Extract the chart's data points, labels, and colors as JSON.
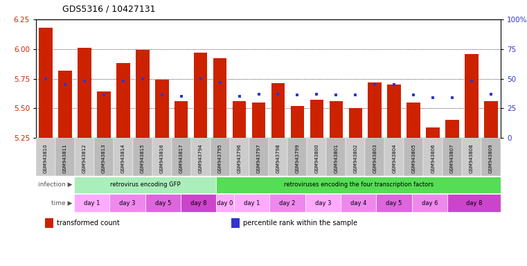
{
  "title": "GDS5316 / 10427131",
  "samples": [
    "GSM943810",
    "GSM943811",
    "GSM943812",
    "GSM943813",
    "GSM943814",
    "GSM943815",
    "GSM943816",
    "GSM943817",
    "GSM943794",
    "GSM943795",
    "GSM943796",
    "GSM943797",
    "GSM943798",
    "GSM943799",
    "GSM943800",
    "GSM943801",
    "GSM943802",
    "GSM943803",
    "GSM943804",
    "GSM943805",
    "GSM943806",
    "GSM943807",
    "GSM943808",
    "GSM943809"
  ],
  "bar_values": [
    6.18,
    5.82,
    6.01,
    5.64,
    5.88,
    5.99,
    5.74,
    5.56,
    5.97,
    5.92,
    5.56,
    5.55,
    5.71,
    5.52,
    5.57,
    5.56,
    5.5,
    5.72,
    5.7,
    5.55,
    5.34,
    5.4,
    5.96,
    5.56
  ],
  "blue_percent": [
    50,
    45,
    48,
    36,
    48,
    50,
    36,
    35,
    50,
    47,
    35,
    37,
    37,
    36,
    37,
    36,
    36,
    45,
    45,
    36,
    34,
    34,
    48,
    37
  ],
  "ylim": [
    5.25,
    6.25
  ],
  "yticks": [
    5.25,
    5.5,
    5.75,
    6.0,
    6.25
  ],
  "y2lim": [
    0,
    100
  ],
  "y2ticks": [
    0,
    25,
    50,
    75,
    100
  ],
  "bar_color": "#cc2200",
  "blue_color": "#3333cc",
  "bar_bottom": 5.25,
  "grid_lines": [
    5.5,
    5.75,
    6.0
  ],
  "infection_groups": [
    {
      "label": "retrovirus encoding GFP",
      "start": 0,
      "end": 8,
      "color": "#aaeebb"
    },
    {
      "label": "retroviruses encoding the four transcription factors",
      "start": 8,
      "end": 24,
      "color": "#55dd55"
    }
  ],
  "time_groups": [
    {
      "label": "day 1",
      "start": 0,
      "end": 2,
      "color": "#ffaaff"
    },
    {
      "label": "day 3",
      "start": 2,
      "end": 4,
      "color": "#ee88ee"
    },
    {
      "label": "day 5",
      "start": 4,
      "end": 6,
      "color": "#dd66dd"
    },
    {
      "label": "day 8",
      "start": 6,
      "end": 8,
      "color": "#cc44cc"
    },
    {
      "label": "day 0",
      "start": 8,
      "end": 9,
      "color": "#ffaaff"
    },
    {
      "label": "day 1",
      "start": 9,
      "end": 11,
      "color": "#ffaaff"
    },
    {
      "label": "day 2",
      "start": 11,
      "end": 13,
      "color": "#ee88ee"
    },
    {
      "label": "day 3",
      "start": 13,
      "end": 15,
      "color": "#ffaaff"
    },
    {
      "label": "day 4",
      "start": 15,
      "end": 17,
      "color": "#ee88ee"
    },
    {
      "label": "day 5",
      "start": 17,
      "end": 19,
      "color": "#dd66dd"
    },
    {
      "label": "day 6",
      "start": 19,
      "end": 21,
      "color": "#ee88ee"
    },
    {
      "label": "day 8",
      "start": 21,
      "end": 24,
      "color": "#cc44cc"
    }
  ],
  "legend_items": [
    {
      "label": "transformed count",
      "color": "#cc2200"
    },
    {
      "label": "percentile rank within the sample",
      "color": "#3333cc"
    }
  ],
  "label_color_infection": "#666666",
  "sample_bg_color": "#cccccc",
  "sample_bg_color_alt": "#aaaaaa"
}
